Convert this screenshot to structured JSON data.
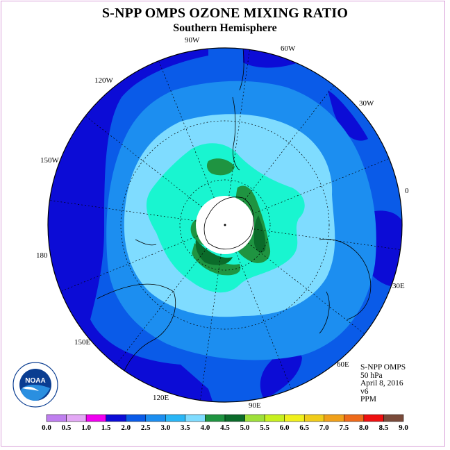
{
  "header": {
    "title": "S-NPP OMPS OZONE MIXING RATIO",
    "subtitle": "Southern Hemisphere"
  },
  "info": {
    "instrument": "S-NPP OMPS",
    "level": "50 hPa",
    "date": "April 8, 2016",
    "version": "v6",
    "units": "PPM"
  },
  "logo": {
    "text": "NOAA"
  },
  "longitude_labels": [
    "90W",
    "60W",
    "30W",
    "0",
    "30E",
    "60E",
    "90E",
    "120E",
    "150E",
    "180",
    "150W",
    "120W"
  ],
  "colorbar": {
    "ticks": [
      "0.0",
      "0.5",
      "1.0",
      "1.5",
      "2.0",
      "2.5",
      "3.0",
      "3.5",
      "4.0",
      "4.5",
      "5.0",
      "5.5",
      "6.0",
      "6.5",
      "7.0",
      "7.5",
      "8.0",
      "8.5",
      "9.0"
    ],
    "colors": [
      "#bf7fef",
      "#e3a8f5",
      "#f000f0",
      "#0c0cd6",
      "#0a5be8",
      "#1c8ef0",
      "#29b6f6",
      "#7fdcff",
      "#1f9441",
      "#0b6b2a",
      "#9ee03a",
      "#c7f01f",
      "#f0f01c",
      "#f0cc1a",
      "#f0a01a",
      "#ee6a1a",
      "#ee1010",
      "#7a4a3a"
    ]
  },
  "map": {
    "hemisphere": "Southern",
    "field": "ozone mixing ratio",
    "colors": {
      "lt1.5": "#0c0cd6",
      "1.5-2.0": "#0d10d8",
      "2.0-2.5": "#0a5be8",
      "2.5-3.0": "#1c8ef0",
      "3.0-3.5": "#7fdcff",
      "3.5-4.0": "#19f5d0",
      "4.0-4.5": "#1f9441",
      "4.5-5.0": "#0b6b2a",
      "no_data": "#ffffff"
    }
  }
}
